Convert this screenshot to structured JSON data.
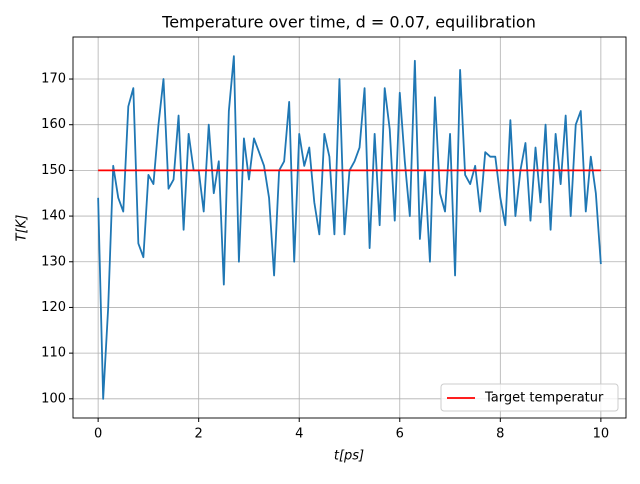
{
  "chart_data": {
    "type": "line",
    "title": "Temperature over time, d = 0.07, equilibration",
    "xlabel": "t[ps]",
    "ylabel": "T[K]",
    "xlim": [
      -0.5,
      10.5
    ],
    "ylim": [
      95.8,
      179.2
    ],
    "xticks": [
      0,
      2,
      4,
      6,
      8,
      10
    ],
    "yticks": [
      100,
      110,
      120,
      130,
      140,
      150,
      160,
      170
    ],
    "grid": true,
    "legend": "lower right",
    "series": [
      {
        "color": "#1f77b4",
        "x": [
          0,
          0.1,
          0.2,
          0.3,
          0.4,
          0.5,
          0.6,
          0.7,
          0.8,
          0.9,
          1,
          1.1,
          1.2,
          1.3,
          1.4,
          1.5,
          1.6,
          1.7,
          1.8,
          1.9,
          2,
          2.1,
          2.2,
          2.3,
          2.4,
          2.5,
          2.6,
          2.7,
          2.8,
          2.9,
          3,
          3.1,
          3.2,
          3.3,
          3.4,
          3.5,
          3.6,
          3.7,
          3.8,
          3.9,
          4,
          4.1,
          4.2,
          4.3,
          4.4,
          4.5,
          4.6,
          4.7,
          4.8,
          4.9,
          5,
          5.1,
          5.2,
          5.3,
          5.4,
          5.5,
          5.6,
          5.7,
          5.8,
          5.9,
          6,
          6.1,
          6.2,
          6.3,
          6.4,
          6.5,
          6.6,
          6.7,
          6.8,
          6.9,
          7,
          7.1,
          7.2,
          7.3,
          7.4,
          7.5,
          7.6,
          7.7,
          7.8,
          7.9,
          8,
          8.1,
          8.2,
          8.3,
          8.4,
          8.5,
          8.6,
          8.7,
          8.8,
          8.9,
          9,
          9.1,
          9.2,
          9.3,
          9.4,
          9.5,
          9.6,
          9.7,
          9.8,
          9.9,
          10
        ],
        "values": [
          144,
          100,
          120,
          151,
          144,
          141,
          164,
          168,
          134,
          131,
          149,
          147,
          160,
          170,
          146,
          148,
          162,
          137,
          158,
          150,
          150,
          141,
          160,
          145,
          152,
          125,
          163,
          175,
          130,
          157,
          148,
          157,
          154,
          151,
          144,
          127,
          150,
          152,
          165,
          130,
          158,
          151,
          155,
          143,
          136,
          158,
          153,
          136,
          170,
          136,
          150,
          152,
          155,
          168,
          133,
          158,
          138,
          168,
          159,
          139,
          167,
          152,
          140,
          174,
          135,
          150,
          130,
          166,
          145,
          141,
          158,
          127,
          172,
          149,
          147,
          151,
          141,
          154,
          153,
          153,
          144,
          138,
          161,
          140,
          150,
          156,
          139,
          155,
          143,
          160,
          137,
          158,
          147,
          162,
          140,
          160,
          163,
          141,
          153,
          145,
          129.5
        ]
      },
      {
        "name": "Target temperatur",
        "color": "#ff0000",
        "x": [
          0,
          10
        ],
        "values": [
          150,
          150
        ]
      }
    ]
  }
}
